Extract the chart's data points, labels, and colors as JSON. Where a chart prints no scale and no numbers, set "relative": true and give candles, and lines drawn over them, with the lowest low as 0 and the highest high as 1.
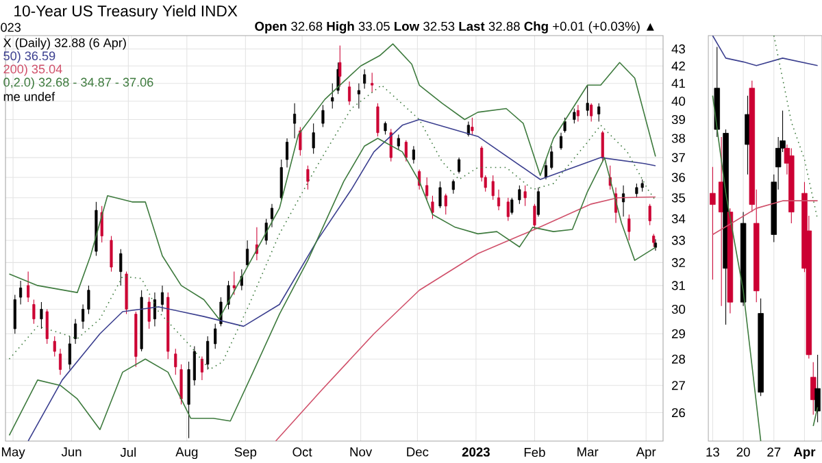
{
  "chart_data": [
    {
      "type": "candlestick",
      "title": "10-Year US Treasury Yield INDX",
      "subtitle": "**Open** 32.68 **High** 33.05 **Low** 32.53 **Last** 32.88 **Chg** +0.01 (+0.03%) ▲",
      "annotations": [
        "023",
        "me undef"
      ],
      "log": "y",
      "grid": true,
      "legend": "top left",
      "xlim": [
        "2022-04-27",
        "2023-04-10"
      ],
      "xticks": [
        {
          "value": "2022-05-01",
          "label": "May"
        },
        {
          "value": "2022-06-01",
          "label": "Jun"
        },
        {
          "value": "2022-07-01",
          "label": "Jul"
        },
        {
          "value": "2022-08-01",
          "label": "Aug"
        },
        {
          "value": "2022-09-01",
          "label": "Sep"
        },
        {
          "value": "2022-10-01",
          "label": "Oct"
        },
        {
          "value": "2022-11-01",
          "label": "Nov"
        },
        {
          "value": "2022-12-01",
          "label": "Dec"
        },
        {
          "value": "2023-01-01",
          "label": "**2023**"
        },
        {
          "value": "2023-02-01",
          "label": "Feb"
        },
        {
          "value": "2023-03-01",
          "label": "Mar"
        },
        {
          "value": "2023-04-01",
          "label": "Apr"
        }
      ],
      "ylim": [
        25,
        43.8
      ],
      "yticks": [
        26,
        27,
        28,
        29,
        30,
        31,
        32,
        33,
        34,
        35,
        36,
        37,
        38,
        39,
        40,
        41,
        42,
        43
      ],
      "series": [
        {
          "type": "candlestick",
          "name": "X (Daily) 32.88 (6 Apr)",
          "color": "#000000",
          "x": [
            "2022-05-02",
            "2022-05-05",
            "2022-05-09",
            "2022-05-12",
            "2022-05-16",
            "2022-05-19",
            "2022-05-23",
            "2022-05-26",
            "2022-05-31",
            "2022-06-03",
            "2022-06-07",
            "2022-06-10",
            "2022-06-14",
            "2022-06-17",
            "2022-06-22",
            "2022-06-27",
            "2022-06-30",
            "2022-07-05",
            "2022-07-08",
            "2022-07-12",
            "2022-07-15",
            "2022-07-19",
            "2022-07-22",
            "2022-07-26",
            "2022-07-29",
            "2022-08-02",
            "2022-08-05",
            "2022-08-09",
            "2022-08-12",
            "2022-08-16",
            "2022-08-19",
            "2022-08-23",
            "2022-08-26",
            "2022-08-30",
            "2022-09-02",
            "2022-09-07",
            "2022-09-12",
            "2022-09-15",
            "2022-09-20",
            "2022-09-23",
            "2022-09-27",
            "2022-09-30",
            "2022-10-04",
            "2022-10-07",
            "2022-10-12",
            "2022-10-17",
            "2022-10-20",
            "2022-10-21",
            "2022-10-26",
            "2022-10-31",
            "2022-11-03",
            "2022-11-07",
            "2022-11-10",
            "2022-11-14",
            "2022-11-17",
            "2022-11-21",
            "2022-11-25",
            "2022-11-29",
            "2022-12-02",
            "2022-12-06",
            "2022-12-09",
            "2022-12-13",
            "2022-12-16",
            "2022-12-20",
            "2022-12-23",
            "2022-12-28",
            "2022-12-30",
            "2023-01-04",
            "2023-01-06",
            "2023-01-10",
            "2023-01-13",
            "2023-01-18",
            "2023-01-20",
            "2023-01-24",
            "2023-01-27",
            "2023-02-01",
            "2023-02-03",
            "2023-02-07",
            "2023-02-10",
            "2023-02-15",
            "2023-02-17",
            "2023-02-22",
            "2023-02-24",
            "2023-03-01",
            "2023-03-03",
            "2023-03-07",
            "2023-03-09",
            "2023-03-13",
            "2023-03-16",
            "2023-03-20",
            "2023-03-23",
            "2023-03-27",
            "2023-03-30",
            "2023-04-03",
            "2023-04-05",
            "2023-04-06"
          ],
          "ohlc": [
            [
              29.2,
              30.6,
              29.0,
              30.4
            ],
            [
              30.5,
              31.2,
              30.2,
              30.9
            ],
            [
              31.0,
              31.6,
              30.3,
              30.5
            ],
            [
              30.2,
              30.4,
              29.4,
              29.6
            ],
            [
              29.6,
              30.3,
              29.2,
              30.0
            ],
            [
              29.9,
              30.0,
              28.6,
              28.8
            ],
            [
              28.7,
              28.9,
              28.1,
              28.3
            ],
            [
              28.2,
              28.4,
              27.4,
              27.6
            ],
            [
              27.8,
              28.9,
              27.6,
              28.6
            ],
            [
              28.8,
              29.6,
              28.6,
              29.4
            ],
            [
              29.5,
              30.2,
              29.2,
              30.0
            ],
            [
              30.0,
              31.0,
              29.8,
              30.8
            ],
            [
              32.5,
              34.8,
              32.3,
              34.4
            ],
            [
              34.3,
              34.6,
              32.9,
              33.2
            ],
            [
              33.0,
              33.2,
              31.6,
              31.8
            ],
            [
              31.6,
              32.6,
              31.0,
              32.4
            ],
            [
              31.5,
              31.6,
              29.8,
              30.0
            ],
            [
              29.8,
              29.9,
              27.7,
              28.1
            ],
            [
              28.4,
              30.8,
              28.3,
              30.5
            ],
            [
              30.3,
              30.5,
              29.2,
              29.5
            ],
            [
              29.6,
              30.7,
              29.3,
              30.4
            ],
            [
              30.2,
              31.0,
              29.9,
              30.7
            ],
            [
              30.5,
              30.7,
              28.0,
              28.3
            ],
            [
              28.2,
              28.4,
              27.4,
              27.7
            ],
            [
              27.6,
              27.8,
              26.3,
              26.5
            ],
            [
              26.3,
              27.9,
              25.1,
              27.6
            ],
            [
              27.2,
              28.5,
              27.0,
              28.3
            ],
            [
              28.0,
              28.1,
              27.2,
              27.5
            ],
            [
              27.8,
              28.9,
              27.6,
              28.7
            ],
            [
              28.6,
              29.4,
              28.4,
              29.2
            ],
            [
              29.4,
              30.5,
              29.3,
              30.3
            ],
            [
              30.2,
              31.2,
              30.0,
              31.0
            ],
            [
              31.0,
              31.6,
              30.6,
              30.9
            ],
            [
              31.0,
              31.7,
              30.8,
              31.4
            ],
            [
              31.9,
              33.0,
              31.8,
              32.6
            ],
            [
              32.8,
              33.6,
              32.1,
              32.4
            ],
            [
              33.0,
              34.0,
              32.8,
              33.8
            ],
            [
              34.0,
              34.7,
              33.6,
              34.5
            ],
            [
              35.0,
              36.9,
              34.9,
              36.5
            ],
            [
              36.9,
              38.0,
              36.5,
              37.8
            ],
            [
              38.8,
              39.9,
              38.0,
              39.3
            ],
            [
              38.4,
              38.6,
              37.1,
              37.4
            ],
            [
              36.4,
              36.6,
              35.4,
              35.8
            ],
            [
              37.5,
              38.8,
              37.2,
              38.3
            ],
            [
              38.8,
              39.8,
              38.6,
              39.5
            ],
            [
              40.0,
              41.0,
              39.6,
              40.2
            ],
            [
              40.6,
              42.2,
              40.4,
              41.8
            ],
            [
              42.2,
              43.2,
              40.8,
              41.4
            ],
            [
              40.8,
              41.1,
              39.8,
              40.0
            ],
            [
              40.4,
              41.0,
              39.6,
              40.6
            ],
            [
              41.0,
              41.8,
              40.7,
              41.5
            ],
            [
              41.0,
              41.6,
              40.5,
              40.9
            ],
            [
              39.7,
              39.9,
              38.1,
              38.3
            ],
            [
              38.4,
              38.9,
              38.2,
              38.8
            ],
            [
              38.3,
              38.5,
              36.8,
              37.0
            ],
            [
              37.6,
              38.2,
              37.4,
              38.0
            ],
            [
              37.8,
              37.9,
              36.8,
              37.0
            ],
            [
              36.9,
              37.6,
              36.7,
              37.4
            ],
            [
              36.3,
              36.4,
              35.4,
              35.6
            ],
            [
              35.6,
              36.0,
              34.9,
              35.1
            ],
            [
              34.8,
              35.1,
              34.0,
              34.3
            ],
            [
              34.6,
              35.8,
              34.5,
              35.5
            ],
            [
              35.1,
              35.2,
              34.2,
              34.6
            ],
            [
              35.4,
              35.9,
              35.2,
              35.8
            ],
            [
              36.3,
              37.0,
              36.2,
              36.9
            ],
            [
              38.2,
              38.9,
              38.1,
              38.7
            ],
            [
              38.6,
              39.1,
              38.2,
              38.4
            ],
            [
              37.5,
              37.6,
              35.8,
              36.0
            ],
            [
              36.0,
              36.1,
              35.3,
              35.5
            ],
            [
              35.8,
              36.1,
              34.9,
              35.1
            ],
            [
              35.0,
              35.4,
              34.4,
              34.6
            ],
            [
              34.8,
              35.0,
              33.9,
              34.1
            ],
            [
              34.3,
              35.0,
              34.2,
              34.9
            ],
            [
              34.9,
              35.6,
              34.7,
              35.4
            ],
            [
              35.3,
              35.6,
              34.6,
              35.0
            ],
            [
              34.6,
              34.7,
              33.5,
              33.7
            ],
            [
              34.2,
              35.5,
              34.1,
              35.3
            ],
            [
              36.0,
              36.9,
              35.9,
              36.6
            ],
            [
              36.5,
              37.6,
              36.4,
              37.3
            ],
            [
              37.5,
              38.3,
              37.4,
              38.1
            ],
            [
              38.4,
              39.1,
              38.3,
              38.9
            ],
            [
              39.0,
              39.6,
              38.8,
              39.4
            ],
            [
              39.5,
              39.8,
              38.9,
              39.2
            ],
            [
              39.5,
              40.9,
              39.2,
              39.9
            ],
            [
              39.8,
              39.9,
              38.9,
              39.2
            ],
            [
              39.3,
              39.9,
              38.9,
              39.7
            ],
            [
              38.3,
              38.4,
              36.8,
              37.0
            ],
            [
              36.0,
              36.6,
              35.4,
              35.6
            ],
            [
              35.2,
              35.5,
              33.8,
              34.3
            ],
            [
              34.8,
              35.6,
              34.1,
              35.2
            ],
            [
              34.0,
              34.2,
              33.0,
              33.4
            ],
            [
              35.2,
              35.7,
              35.0,
              35.5
            ],
            [
              35.5,
              35.9,
              35.3,
              35.7
            ],
            [
              34.6,
              34.7,
              33.7,
              33.9
            ],
            [
              33.2,
              33.3,
              32.7,
              32.9
            ],
            [
              32.68,
              33.05,
              32.53,
              32.88
            ]
          ],
          "colors": [
            "#000000",
            "#000000",
            "#cc0033",
            "#cc0033",
            "#000000",
            "#cc0033",
            "#cc0033",
            "#cc0033",
            "#000000",
            "#000000",
            "#000000",
            "#000000",
            "#000000",
            "#cc0033",
            "#cc0033",
            "#000000",
            "#cc0033",
            "#cc0033",
            "#000000",
            "#cc0033",
            "#000000",
            "#000000",
            "#cc0033",
            "#cc0033",
            "#cc0033",
            "#000000",
            "#000000",
            "#cc0033",
            "#000000",
            "#000000",
            "#000000",
            "#000000",
            "#cc0033",
            "#000000",
            "#000000",
            "#cc0033",
            "#000000",
            "#000000",
            "#000000",
            "#000000",
            "#000000",
            "#cc0033",
            "#cc0033",
            "#000000",
            "#000000",
            "#000000",
            "#000000",
            "#cc0033",
            "#cc0033",
            "#000000",
            "#000000",
            "#cc0033",
            "#cc0033",
            "#000000",
            "#cc0033",
            "#000000",
            "#cc0033",
            "#000000",
            "#cc0033",
            "#cc0033",
            "#cc0033",
            "#000000",
            "#cc0033",
            "#000000",
            "#000000",
            "#000000",
            "#cc0033",
            "#cc0033",
            "#cc0033",
            "#cc0033",
            "#cc0033",
            "#cc0033",
            "#000000",
            "#000000",
            "#cc0033",
            "#cc0033",
            "#000000",
            "#000000",
            "#000000",
            "#000000",
            "#000000",
            "#000000",
            "#cc0033",
            "#000000",
            "#cc0033",
            "#000000",
            "#cc0033",
            "#cc0033",
            "#cc0033",
            "#000000",
            "#cc0033",
            "#000000",
            "#000000",
            "#cc0033",
            "#cc0033",
            "#000000"
          ]
        },
        {
          "type": "line",
          "name": "50) 36.59",
          "color": "#3b3f8f",
          "x": [
            "2022-05-09",
            "2022-05-27",
            "2022-06-16",
            "2022-06-28",
            "2022-07-17",
            "2022-08-10",
            "2022-08-31",
            "2022-09-19",
            "2022-10-09",
            "2022-10-27",
            "2022-11-08",
            "2022-11-23",
            "2022-12-02",
            "2023-01-02",
            "2023-02-04",
            "2023-03-08",
            "2023-03-31",
            "2023-04-06"
          ],
          "values": [
            25.0,
            27.2,
            29.0,
            29.9,
            30.1,
            29.7,
            29.3,
            30.2,
            33.0,
            35.4,
            37.3,
            38.7,
            39.0,
            38.1,
            35.9,
            37.0,
            36.7,
            36.59
          ]
        },
        {
          "type": "line",
          "name": "200) 35.04",
          "color": "#d0506a",
          "x": [
            "2022-09-17",
            "2022-10-11",
            "2022-11-08",
            "2022-12-02",
            "2023-01-02",
            "2023-02-01",
            "2023-03-03",
            "2023-03-17",
            "2023-04-06"
          ],
          "values": [
            25.0,
            26.8,
            29.0,
            30.8,
            32.4,
            33.5,
            34.7,
            35.0,
            35.04
          ]
        },
        {
          "type": "line",
          "color": "#3d7a3d",
          "x": [
            "2022-04-29",
            "2022-05-14",
            "2022-05-26",
            "2022-06-04",
            "2022-06-16",
            "2022-06-28",
            "2022-07-10",
            "2022-07-22",
            "2022-08-03",
            "2022-08-15",
            "2022-08-24",
            "2022-09-05",
            "2022-09-19",
            "2022-10-04",
            "2022-10-23",
            "2022-11-03",
            "2022-11-10",
            "2022-11-23",
            "2022-12-02",
            "2022-12-09",
            "2022-12-21",
            "2023-01-02",
            "2023-01-12",
            "2023-01-24",
            "2023-01-31",
            "2023-02-11",
            "2023-02-21",
            "2023-03-01",
            "2023-03-10",
            "2023-03-19",
            "2023-03-26",
            "2023-04-06"
          ],
          "values": [
            25.2,
            27.2,
            27.0,
            26.5,
            25.4,
            27.5,
            28.0,
            27.5,
            25.8,
            25.8,
            25.7,
            27.5,
            29.8,
            32.1,
            35.8,
            37.6,
            38.0,
            37.3,
            35.8,
            34.2,
            33.6,
            33.3,
            33.4,
            32.7,
            33.6,
            33.4,
            33.5,
            35.3,
            37.0,
            33.8,
            32.1,
            32.68
          ]
        },
        {
          "type": "line",
          "name": "0,2.0) 32.68 - 34.87 - 37.06",
          "color": "#3d7a3d",
          "line_style": "dotted",
          "x": [
            "2022-04-29",
            "2022-05-14",
            "2022-05-23",
            "2022-06-04",
            "2022-06-16",
            "2022-06-28",
            "2022-07-08",
            "2022-07-17",
            "2022-08-03",
            "2022-08-13",
            "2022-08-20",
            "2022-09-03",
            "2022-09-19",
            "2022-10-09",
            "2022-10-27",
            "2022-11-12",
            "2022-12-02",
            "2022-12-14",
            "2022-12-23",
            "2023-01-02",
            "2023-01-17",
            "2023-01-31",
            "2023-02-11",
            "2023-03-01",
            "2023-03-08",
            "2023-03-22",
            "2023-04-02",
            "2023-04-06"
          ],
          "values": [
            28.0,
            29.3,
            29.1,
            28.8,
            29.6,
            31.4,
            31.3,
            29.9,
            28.5,
            27.6,
            27.9,
            30.2,
            33.3,
            36.6,
            39.6,
            40.9,
            39.0,
            36.8,
            35.9,
            36.5,
            36.5,
            35.4,
            35.7,
            37.8,
            38.7,
            37.3,
            35.4,
            34.87
          ]
        },
        {
          "type": "line",
          "color": "#3d7a3d",
          "x": [
            "2022-04-29",
            "2022-05-14",
            "2022-06-04",
            "2022-06-11",
            "2022-06-20",
            "2022-07-03",
            "2022-07-10",
            "2022-07-19",
            "2022-07-29",
            "2022-08-10",
            "2022-08-18",
            "2022-08-31",
            "2022-09-19",
            "2022-09-29",
            "2022-10-13",
            "2022-10-23",
            "2022-11-01",
            "2022-11-11",
            "2022-11-18",
            "2022-11-28",
            "2022-12-02",
            "2022-12-14",
            "2022-12-26",
            "2023-01-02",
            "2023-01-17",
            "2023-01-26",
            "2023-02-04",
            "2023-02-11",
            "2023-03-01",
            "2023-03-08",
            "2023-03-18",
            "2023-03-26",
            "2023-04-06"
          ],
          "values": [
            31.5,
            31.0,
            30.7,
            32.3,
            35.1,
            34.8,
            34.8,
            32.3,
            31.0,
            30.4,
            29.6,
            31.5,
            34.5,
            38.2,
            40.1,
            41.1,
            42.0,
            42.6,
            43.3,
            42.1,
            40.9,
            39.9,
            39.0,
            39.4,
            39.6,
            38.8,
            36.1,
            38.0,
            40.9,
            40.9,
            42.2,
            41.3,
            37.06
          ]
        }
      ]
    },
    {
      "type": "candlestick",
      "relative": true,
      "grid": "x",
      "tick_labels": "x",
      "xlim": [
        "2023-03-12",
        "2023-04-07"
      ],
      "xticks": [
        {
          "value": "2023-03-13",
          "label": "13"
        },
        {
          "value": "2023-03-20",
          "label": "20"
        },
        {
          "value": "2023-03-27",
          "label": "27"
        },
        {
          "value": "2023-04-03",
          "label": "**Apr**"
        }
      ],
      "series": [
        {
          "type": "candlestick",
          "color": "#000000",
          "x": [
            "2023-03-13",
            "2023-03-14",
            "2023-03-15",
            "2023-03-16",
            "2023-03-17",
            "2023-03-20",
            "2023-03-21",
            "2023-03-22",
            "2023-03-23",
            "2023-03-24",
            "2023-03-27",
            "2023-03-28",
            "2023-03-29",
            "2023-03-30",
            "2023-03-31",
            "2023-04-03",
            "2023-04-04",
            "2023-04-05",
            "2023-04-06"
          ],
          "ohlc": [
            [
              0.61,
              0.68,
              0.38,
              0.58
            ],
            [
              0.78,
              1.0,
              0.76,
              0.89
            ],
            [
              0.64,
              0.76,
              0.31,
              0.56
            ],
            [
              0.41,
              0.78,
              0.26,
              0.77
            ],
            [
              0.56,
              0.57,
              0.29,
              0.32
            ],
            [
              0.32,
              0.56,
              0.31,
              0.53
            ],
            [
              0.74,
              0.87,
              0.66,
              0.82
            ],
            [
              0.89,
              0.91,
              0.56,
              0.58
            ],
            [
              0.53,
              0.62,
              0.32,
              0.35
            ],
            [
              0.08,
              0.33,
              0.07,
              0.29
            ],
            [
              0.5,
              0.66,
              0.48,
              0.64
            ],
            [
              0.68,
              0.76,
              0.62,
              0.73
            ],
            [
              0.73,
              0.83,
              0.72,
              0.75
            ],
            [
              0.73,
              0.74,
              0.66,
              0.69
            ],
            [
              0.71,
              0.73,
              0.53,
              0.56
            ],
            [
              0.61,
              0.64,
              0.4,
              0.41
            ],
            [
              0.51,
              0.55,
              0.17,
              0.18
            ],
            [
              0.12,
              0.16,
              0.02,
              0.06
            ],
            [
              0.03,
              0.18,
              0.0,
              0.09
            ]
          ],
          "colors": [
            "#cc0033",
            "#000000",
            "#cc0033",
            "#000000",
            "#cc0033",
            "#000000",
            "#000000",
            "#cc0033",
            "#cc0033",
            "#000000",
            "#000000",
            "#000000",
            "#000000",
            "#cc0033",
            "#cc0033",
            "#cc0033",
            "#cc0033",
            "#cc0033",
            "#000000"
          ]
        },
        {
          "type": "line",
          "color": "#3b3f8f",
          "x": [
            "2023-03-13",
            "2023-03-16",
            "2023-03-20",
            "2023-03-23",
            "2023-03-29",
            "2023-04-06"
          ],
          "values": [
            1.03,
            0.97,
            0.96,
            0.95,
            0.97,
            0.95
          ]
        },
        {
          "type": "line",
          "color": "#d0506a",
          "x": [
            "2023-03-13",
            "2023-03-23",
            "2023-03-29",
            "2023-04-06"
          ],
          "values": [
            0.5,
            0.57,
            0.59,
            0.59
          ]
        },
        {
          "type": "line",
          "color": "#3d7a3d",
          "x": [
            "2023-03-13",
            "2023-03-16",
            "2023-03-20",
            "2023-03-22",
            "2023-03-24",
            "2023-03-30",
            "2023-04-05",
            "2023-04-06"
          ],
          "values": [
            0.87,
            0.61,
            0.35,
            0.15,
            -0.05,
            null,
            -0.01,
            0.04
          ]
        },
        {
          "type": "line",
          "color": "#3d7a3d",
          "line_style": "dotted",
          "x": [
            "2023-03-27",
            "2023-03-31",
            "2023-04-03",
            "2023-04-06"
          ],
          "values": [
            1.03,
            0.8,
            0.7,
            0.54
          ]
        }
      ]
    }
  ]
}
